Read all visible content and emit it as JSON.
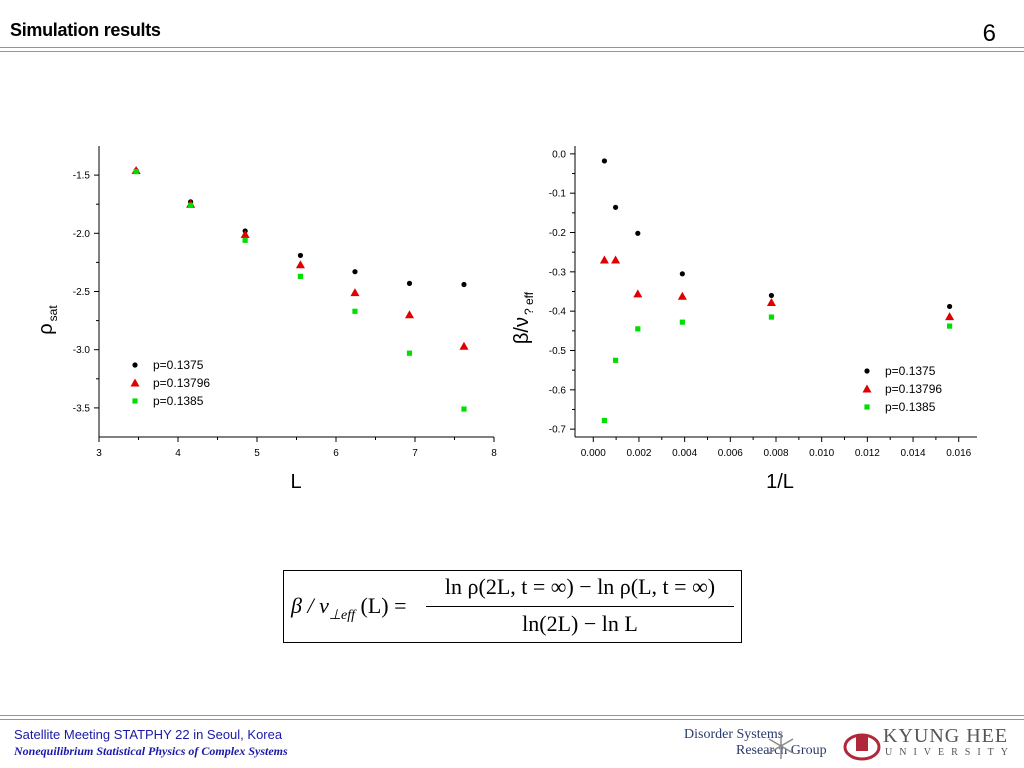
{
  "slide": {
    "title": "Simulation results",
    "page_number": "6",
    "rule_color": "#b07cc8"
  },
  "chart_data": [
    {
      "type": "scatter",
      "xlabel": "L",
      "ylabel_main": "ρ",
      "ylabel_sub": "sat",
      "xlim": [
        3,
        8
      ],
      "ylim": [
        -3.75,
        -1.25
      ],
      "xticks": [
        3,
        4,
        5,
        6,
        7,
        8
      ],
      "yticks": [
        -1.5,
        -2.0,
        -2.5,
        -3.0,
        -3.5
      ],
      "ytick_labels": [
        "-1.5",
        "-2.0",
        "-2.5",
        "-3.0",
        "-3.5"
      ],
      "legend_position": "bottom-left",
      "series": [
        {
          "name": "p=0.1375",
          "marker": "circle",
          "color": "#000000",
          "points": [
            [
              3.47,
              -1.46
            ],
            [
              4.16,
              -1.73
            ],
            [
              4.85,
              -1.98
            ],
            [
              5.55,
              -2.19
            ],
            [
              6.24,
              -2.33
            ],
            [
              6.93,
              -2.43
            ],
            [
              7.62,
              -2.44
            ]
          ]
        },
        {
          "name": "p=0.13796",
          "marker": "triangle",
          "color": "#e00000",
          "points": [
            [
              3.47,
              -1.46
            ],
            [
              4.16,
              -1.75
            ],
            [
              4.85,
              -2.01
            ],
            [
              5.55,
              -2.27
            ],
            [
              6.24,
              -2.51
            ],
            [
              6.93,
              -2.7
            ],
            [
              7.62,
              -2.97
            ]
          ]
        },
        {
          "name": "p=0.1385",
          "marker": "square",
          "color": "#00e000",
          "points": [
            [
              3.47,
              -1.47
            ],
            [
              4.16,
              -1.76
            ],
            [
              4.85,
              -2.06
            ],
            [
              5.55,
              -2.37
            ],
            [
              6.24,
              -2.67
            ],
            [
              6.93,
              -3.03
            ],
            [
              7.62,
              -3.51
            ]
          ]
        }
      ]
    },
    {
      "type": "scatter",
      "xlabel": "1/L",
      "ylabel_main": "β/ν",
      "ylabel_sub": "? eff",
      "xlim": [
        -0.0008,
        0.0168
      ],
      "ylim": [
        -0.72,
        0.02
      ],
      "xticks": [
        0.0,
        0.002,
        0.004,
        0.006,
        0.008,
        0.01,
        0.012,
        0.014,
        0.016
      ],
      "xtick_labels": [
        "0.000",
        "0.002",
        "0.004",
        "0.006",
        "0.008",
        "0.010",
        "0.012",
        "0.014",
        "0.016"
      ],
      "yticks": [
        0.0,
        -0.1,
        -0.2,
        -0.3,
        -0.4,
        -0.5,
        -0.6,
        -0.7
      ],
      "ytick_labels": [
        "0.0",
        "-0.1",
        "-0.2",
        "-0.3",
        "-0.4",
        "-0.5",
        "-0.6",
        "-0.7"
      ],
      "legend_position": "bottom-right",
      "series": [
        {
          "name": "p=0.1375",
          "marker": "circle",
          "color": "#000000",
          "points": [
            [
              0.000488,
              -0.018
            ],
            [
              0.000977,
              -0.136
            ],
            [
              0.00195,
              -0.202
            ],
            [
              0.0039,
              -0.305
            ],
            [
              0.0078,
              -0.36
            ],
            [
              0.0156,
              -0.388
            ]
          ]
        },
        {
          "name": "p=0.13796",
          "marker": "triangle",
          "color": "#e00000",
          "points": [
            [
              0.000488,
              -0.27
            ],
            [
              0.000977,
              -0.27
            ],
            [
              0.00195,
              -0.356
            ],
            [
              0.0039,
              -0.362
            ],
            [
              0.0078,
              -0.378
            ],
            [
              0.0156,
              -0.414
            ]
          ]
        },
        {
          "name": "p=0.1385",
          "marker": "square",
          "color": "#00e000",
          "points": [
            [
              0.000488,
              -0.678
            ],
            [
              0.000977,
              -0.525
            ],
            [
              0.00195,
              -0.445
            ],
            [
              0.0039,
              -0.428
            ],
            [
              0.0078,
              -0.415
            ],
            [
              0.0156,
              -0.438
            ]
          ]
        }
      ]
    }
  ],
  "formula": {
    "lhs": "β / ν",
    "lhs_sub": "⊥eff",
    "lhs_arg": " (L) =",
    "numerator": "ln ρ(2L, t = ∞) − ln ρ(L, t = ∞)",
    "denominator": "ln(2L) − ln L"
  },
  "footer": {
    "line1": "Satellite Meeting STATPHY 22 in Seoul, Korea",
    "line2": "Nonequilibrium Statistical Physics of Complex Systems",
    "logo_left_line1": "Disorder Systems",
    "logo_left_line2": "Research Group",
    "logo_right_line1": "KYUNG HEE",
    "logo_right_line2": "UNIVERSITY"
  }
}
